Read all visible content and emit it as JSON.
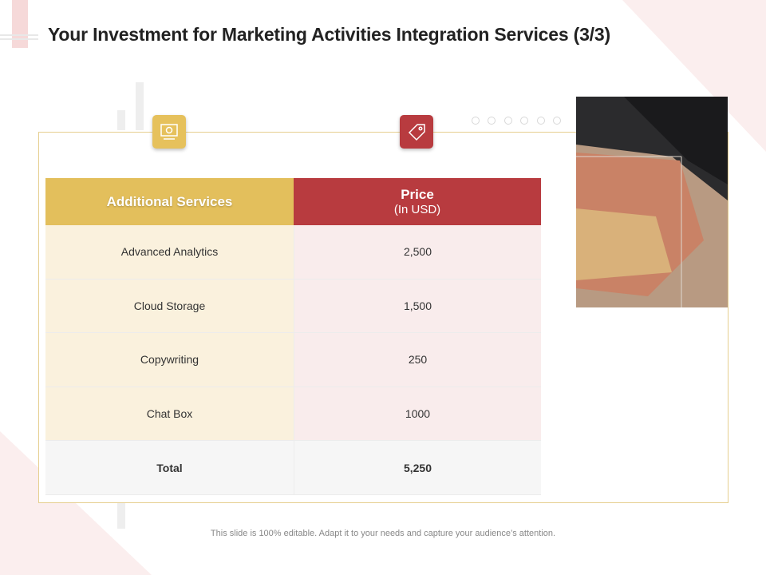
{
  "header": {
    "title": "Your Investment for Marketing Activities Integration Services (3/3)"
  },
  "table": {
    "columns": [
      "Additional Services",
      "Price"
    ],
    "price_unit": "(In USD)",
    "rows": [
      [
        "Advanced Analytics",
        "2,500"
      ],
      [
        "Cloud Storage",
        "1,500"
      ],
      [
        "Copywriting",
        "250"
      ],
      [
        "Chat Box",
        "1000"
      ]
    ],
    "total": [
      "Total",
      "5,250"
    ]
  },
  "footer": "This slide is 100% editable. Adapt it to your needs and capture your audience’s attention."
}
